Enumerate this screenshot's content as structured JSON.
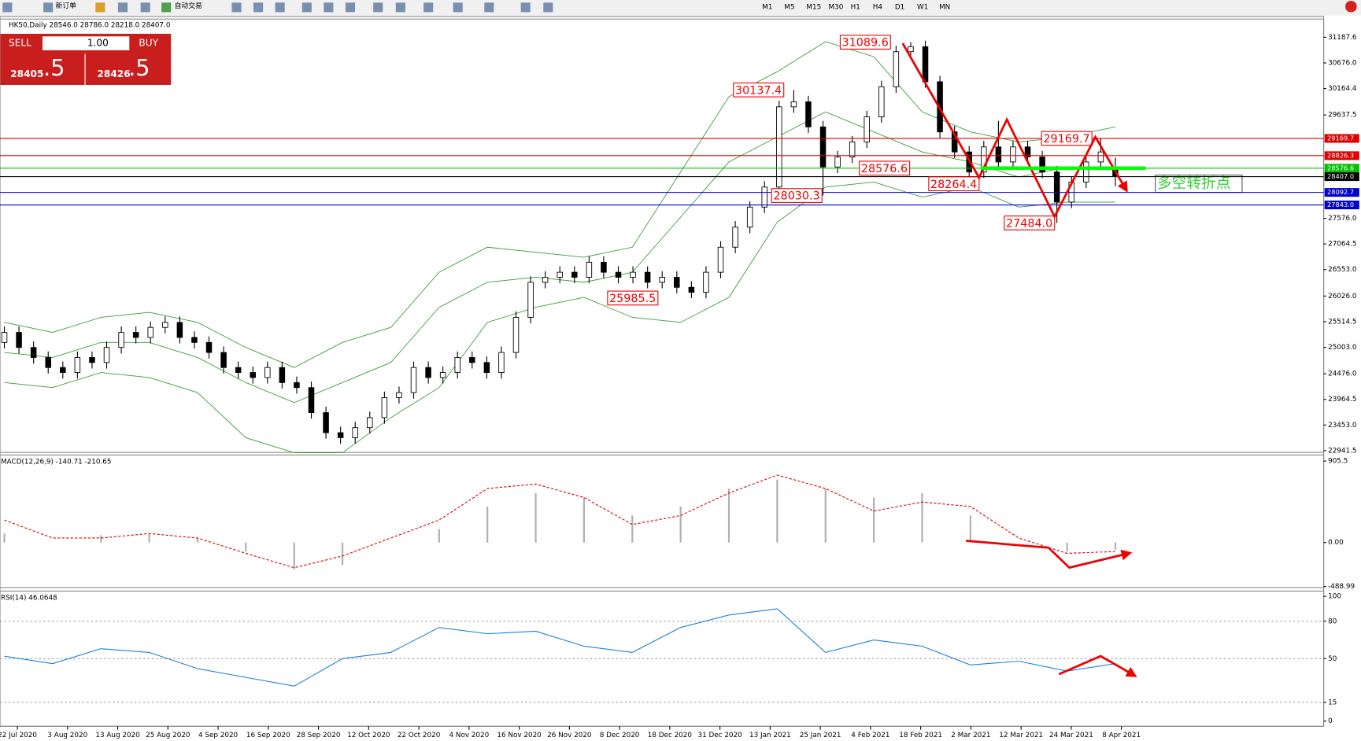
{
  "toolbar": {
    "items": [
      "新订单",
      "自动交易"
    ],
    "timeframes": [
      "M1",
      "M5",
      "M15",
      "M30",
      "H1",
      "H4",
      "D1",
      "W1",
      "MN"
    ]
  },
  "one_click": {
    "sell": "SELL",
    "lot": "1.00",
    "buy": "BUY",
    "sell_price": "28405",
    "sell_pips": ".5",
    "buy_price": "28426",
    "buy_pips": ".5"
  },
  "chart_data": [
    {
      "type": "candlestick",
      "title": "HK50,Daily 28546.0 28786.0 28218.0 28407.0",
      "note": "多空转折点",
      "ylim": [
        22906.9,
        31550.6
      ],
      "yticks": [
        31187.6,
        {
          "value": 30676,
          "label": "30676.0"
        },
        30164.4,
        29637.5,
        {
          "value": 27576,
          "label": "27576.0"
        },
        27064.5,
        {
          "value": 26553,
          "label": "26553.0"
        },
        {
          "value": 26026,
          "label": "26026.0"
        },
        25514.5,
        {
          "value": 25003,
          "label": "25003.0"
        },
        {
          "value": 24476,
          "label": "24476.0"
        },
        23964.5,
        {
          "value": 23453,
          "label": "23453.0"
        },
        22941.5
      ],
      "levels": [
        {
          "value": 29169.7,
          "color": "#e00000"
        },
        {
          "value": 28826.3,
          "color": "#e00000"
        },
        {
          "value": 28576.6,
          "color": "#00c000"
        },
        {
          "value": {
            "value": 28407,
            "label": "28407.0"
          },
          "color": "#000000"
        },
        {
          "value": 28092.7,
          "color": "#0000d0"
        },
        {
          "value": {
            "value": 27843,
            "label": "27843.0"
          },
          "color": "#0000d0"
        }
      ],
      "annotations": [
        31089.6,
        30137.4,
        28576.6,
        28264.4,
        28030.3,
        29169.7,
        {
          "value": 27484,
          "label": "27484.0"
        },
        25985.5
      ],
      "candles": [
        [
          25100,
          25420,
          24980,
          25300
        ],
        [
          25300,
          25420,
          24880,
          25000
        ],
        [
          25000,
          25120,
          24680,
          24800
        ],
        [
          24800,
          24920,
          24480,
          24600
        ],
        [
          24600,
          24720,
          24380,
          24500
        ],
        [
          24500,
          24920,
          24380,
          24800
        ],
        [
          24800,
          24920,
          24580,
          24700
        ],
        [
          24700,
          25120,
          24580,
          25000
        ],
        [
          25000,
          25420,
          24880,
          25300
        ],
        [
          25300,
          25420,
          25080,
          25200
        ],
        [
          25200,
          25520,
          25080,
          25400
        ],
        [
          25400,
          25620,
          25280,
          25500
        ],
        [
          25500,
          25620,
          25080,
          25200
        ],
        [
          25200,
          25320,
          24980,
          25100
        ],
        [
          25100,
          25220,
          24780,
          24900
        ],
        [
          24900,
          25020,
          24480,
          24600
        ],
        [
          24600,
          24720,
          24380,
          24500
        ],
        [
          24500,
          24620,
          24280,
          24400
        ],
        [
          24400,
          24720,
          24280,
          24600
        ],
        [
          24600,
          24720,
          24180,
          24300
        ],
        [
          24300,
          24420,
          24080,
          24200
        ],
        [
          24200,
          24320,
          23580,
          23700
        ],
        [
          23700,
          23820,
          23180,
          23300
        ],
        [
          23300,
          23420,
          23080,
          23200
        ],
        [
          23200,
          23520,
          23080,
          23400
        ],
        [
          23400,
          23720,
          23280,
          23600
        ],
        [
          23600,
          24120,
          23480,
          24000
        ],
        [
          24000,
          24220,
          23880,
          24100
        ],
        [
          24100,
          24720,
          23980,
          24600
        ],
        [
          24600,
          24720,
          24280,
          24400
        ],
        [
          24400,
          24620,
          24280,
          24500
        ],
        [
          24500,
          24920,
          24380,
          24800
        ],
        [
          24800,
          24920,
          24580,
          24700
        ],
        [
          24700,
          24820,
          24380,
          24500
        ],
        [
          24500,
          25020,
          24380,
          24900
        ],
        [
          24900,
          25720,
          24780,
          25600
        ],
        [
          25600,
          26420,
          25480,
          26300
        ],
        [
          26300,
          26520,
          26180,
          26400
        ],
        [
          26400,
          26620,
          26280,
          26500
        ],
        [
          26500,
          26620,
          26280,
          26400
        ],
        [
          26400,
          26820,
          26280,
          26700
        ],
        [
          26700,
          26820,
          26380,
          26500
        ],
        [
          26500,
          26620,
          26280,
          26400
        ],
        [
          26400,
          26620,
          26280,
          26500
        ],
        [
          26500,
          26620,
          26180,
          26300
        ],
        [
          26300,
          26520,
          26180,
          26400
        ],
        [
          26400,
          26520,
          26080,
          26200
        ],
        [
          26200,
          26320,
          25985.5,
          26100
        ],
        [
          26100,
          26620,
          25980,
          26500
        ],
        [
          26500,
          27120,
          26380,
          27000
        ],
        [
          27000,
          27520,
          26880,
          27400
        ],
        [
          27400,
          27920,
          27280,
          27800
        ],
        [
          27800,
          28320,
          27680,
          28200
        ],
        [
          28200,
          29920,
          28080,
          29800
        ],
        [
          29800,
          30137.4,
          29680,
          29900
        ],
        [
          29900,
          30020,
          29280,
          29400
        ],
        [
          29400,
          29520,
          28030.3,
          28600
        ],
        [
          28600,
          28920,
          28480,
          28800
        ],
        [
          28800,
          29220,
          28680,
          29100
        ],
        [
          29100,
          29720,
          28980,
          29600
        ],
        [
          29600,
          30320,
          29480,
          30200
        ],
        [
          30200,
          31020,
          30080,
          30900
        ],
        [
          30900,
          31089.6,
          30780,
          31000
        ],
        [
          31000,
          31120,
          30180,
          30300
        ],
        [
          30300,
          30420,
          29180,
          29300
        ],
        [
          29300,
          29420,
          28780,
          28900
        ],
        [
          28900,
          29020,
          28264.4,
          28500
        ],
        [
          28500,
          29120,
          28380,
          29000
        ],
        [
          29000,
          29520,
          28580,
          28700
        ],
        [
          28700,
          29120,
          28580,
          29000
        ],
        [
          29000,
          29120,
          28680,
          28800
        ],
        [
          28800,
          28920,
          28380,
          28500
        ],
        [
          28500,
          28620,
          27484,
          27900
        ],
        [
          27900,
          28420,
          27780,
          28300
        ],
        [
          28300,
          28820,
          28180,
          28700
        ],
        [
          28700,
          29169.7,
          28580,
          28900
        ],
        [
          28546,
          28786,
          28218,
          28407
        ]
      ],
      "bands": {
        "color": "#3a9a3a",
        "upper": [
          25500,
          25300,
          25600,
          25700,
          25500,
          25000,
          24600,
          25100,
          25400,
          26500,
          27000,
          26900,
          26800,
          27000,
          28500,
          30000,
          30500,
          31100,
          30800,
          29700,
          29300,
          29100,
          29200,
          29400
        ],
        "middle": [
          24900,
          24800,
          25100,
          25100,
          24800,
          24300,
          23900,
          24300,
          24700,
          25800,
          26300,
          26400,
          26300,
          26500,
          27600,
          28700,
          29200,
          29700,
          29300,
          28900,
          28700,
          28400,
          28600,
          28600
        ],
        "lower": [
          24300,
          24200,
          24500,
          24400,
          24100,
          23200,
          22900,
          22900,
          23600,
          24200,
          25500,
          25800,
          26000,
          25600,
          25500,
          26000,
          27500,
          28200,
          28300,
          28000,
          28200,
          27800,
          27900,
          27900
        ]
      }
    },
    {
      "type": "macd",
      "title": "MACD(12,26,9) -140.71 -210.65",
      "ylim": [
        -500.9,
        972.9
      ],
      "yticks": [
        905.5,
        {
          "value": 0,
          "label": "0.00"
        },
        -488.99
      ],
      "histogram": [
        100,
        0,
        80,
        100,
        50,
        -100,
        -300,
        -250,
        0,
        150,
        400,
        550,
        500,
        300,
        400,
        600,
        700,
        600,
        500,
        550,
        300,
        0,
        -100,
        -80
      ],
      "signal": [
        250,
        50,
        50,
        100,
        50,
        -120,
        -280,
        -150,
        50,
        250,
        600,
        650,
        500,
        200,
        300,
        550,
        750,
        600,
        350,
        450,
        400,
        50,
        -120,
        -100
      ],
      "hist_color": "#b0b0b0",
      "signal_color": "#e00000"
    },
    {
      "type": "rsi",
      "title": "RSI(14) 46.0648",
      "ylim": [
        -4.2,
        104.2
      ],
      "yticks": [
        100,
        80,
        50,
        15,
        0
      ],
      "color": "#1e7fe0",
      "values": [
        52,
        46,
        58,
        55,
        42,
        35,
        28,
        50,
        55,
        75,
        70,
        72,
        60,
        55,
        75,
        85,
        90,
        55,
        65,
        60,
        45,
        48,
        40,
        46
      ],
      "x_labels": [
        "22 Jul 2020",
        "3 Aug 2020",
        "13 Aug 2020",
        "25 Aug 2020",
        "4 Sep 2020",
        "16 Sep 2020",
        "28 Sep 2020",
        "12 Oct 2020",
        "22 Oct 2020",
        "4 Nov 2020",
        "16 Nov 2020",
        "26 Nov 2020",
        "8 Dec 2020",
        "18 Dec 2020",
        "31 Dec 2020",
        "13 Jan 2021",
        "25 Jan 2021",
        "4 Feb 2021",
        "18 Feb 2021",
        "2 Mar 2021",
        "12 Mar 2021",
        "24 Mar 2021",
        "8 Apr 2021"
      ]
    }
  ]
}
